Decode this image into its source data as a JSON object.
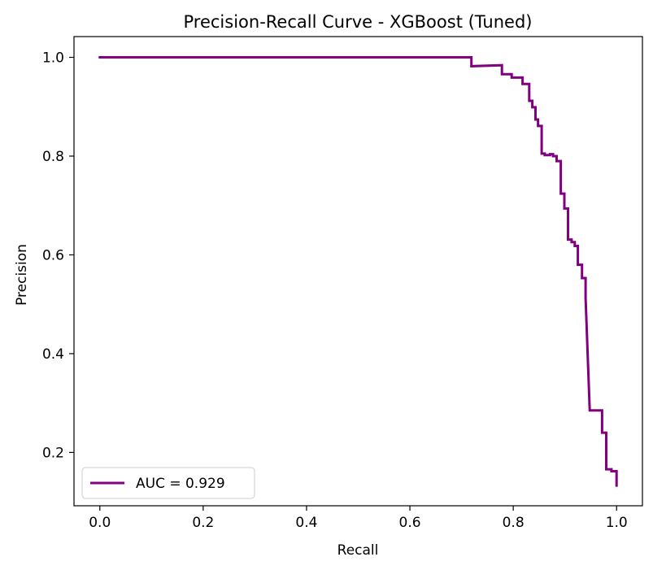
{
  "chart_data": {
    "type": "line",
    "title": "Precision-Recall Curve - XGBoost (Tuned)",
    "xlabel": "Recall",
    "ylabel": "Precision",
    "xlim": [
      -0.05,
      1.05
    ],
    "ylim": [
      0.092,
      1.042
    ],
    "x_ticks": [
      0.0,
      0.2,
      0.4,
      0.6,
      0.8,
      1.0
    ],
    "x_tick_labels": [
      "0.0",
      "0.2",
      "0.4",
      "0.6",
      "0.8",
      "1.0"
    ],
    "y_ticks": [
      0.2,
      0.4,
      0.6,
      0.8,
      1.0
    ],
    "y_tick_labels": [
      "0.2",
      "0.4",
      "0.6",
      "0.8",
      "1.0"
    ],
    "grid": false,
    "legend_position": "lower-left",
    "series": [
      {
        "name": "AUC = 0.929",
        "color": "#800080",
        "x": [
          0.0,
          0.719,
          0.719,
          0.778,
          0.778,
          0.797,
          0.797,
          0.818,
          0.818,
          0.831,
          0.831,
          0.837,
          0.837,
          0.843,
          0.843,
          0.848,
          0.848,
          0.855,
          0.855,
          0.861,
          0.861,
          0.871,
          0.871,
          0.877,
          0.877,
          0.884,
          0.884,
          0.892,
          0.892,
          0.899,
          0.899,
          0.906,
          0.906,
          0.913,
          0.913,
          0.919,
          0.919,
          0.925,
          0.925,
          0.933,
          0.933,
          0.94,
          0.94,
          0.948,
          0.972,
          0.972,
          0.98,
          0.98,
          0.99,
          0.99,
          1.0,
          1.0
        ],
        "y": [
          1.0,
          1.0,
          0.982,
          0.984,
          0.966,
          0.966,
          0.959,
          0.959,
          0.946,
          0.946,
          0.912,
          0.912,
          0.899,
          0.899,
          0.874,
          0.874,
          0.861,
          0.861,
          0.805,
          0.805,
          0.802,
          0.802,
          0.804,
          0.804,
          0.8,
          0.8,
          0.79,
          0.79,
          0.724,
          0.724,
          0.694,
          0.694,
          0.631,
          0.631,
          0.626,
          0.626,
          0.618,
          0.618,
          0.58,
          0.58,
          0.553,
          0.553,
          0.513,
          0.285,
          0.285,
          0.24,
          0.24,
          0.166,
          0.166,
          0.162,
          0.162,
          0.133
        ]
      }
    ]
  }
}
